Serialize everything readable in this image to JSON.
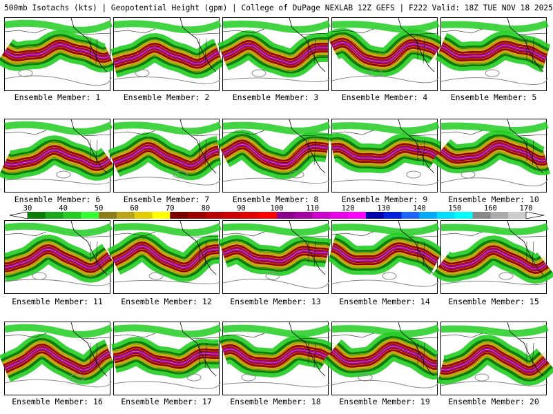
{
  "header": {
    "title": "500mb Isotachs (kts) | Geopotential Height (gpm) | College of DuPage NEXLAB   12Z GEFS | F222 Valid: 18Z TUE NOV 18 2025"
  },
  "members": [
    {
      "label": "Ensemble Member: 1"
    },
    {
      "label": "Ensemble Member: 2"
    },
    {
      "label": "Ensemble Member: 3"
    },
    {
      "label": "Ensemble Member: 4"
    },
    {
      "label": "Ensemble Member: 5"
    },
    {
      "label": "Ensemble Member: 6"
    },
    {
      "label": "Ensemble Member: 7"
    },
    {
      "label": "Ensemble Member: 8"
    },
    {
      "label": "Ensemble Member: 9"
    },
    {
      "label": "Ensemble Member: 10"
    },
    {
      "label": "Ensemble Member: 11"
    },
    {
      "label": "Ensemble Member: 12"
    },
    {
      "label": "Ensemble Member: 13"
    },
    {
      "label": "Ensemble Member: 14"
    },
    {
      "label": "Ensemble Member: 15"
    },
    {
      "label": "Ensemble Member: 16"
    },
    {
      "label": "Ensemble Member: 17"
    },
    {
      "label": "Ensemble Member: 18"
    },
    {
      "label": "Ensemble Member: 19"
    },
    {
      "label": "Ensemble Member: 20"
    }
  ],
  "colorbar": {
    "labels": [
      "30",
      "40",
      "50",
      "60",
      "70",
      "80",
      "90",
      "100",
      "110",
      "120",
      "130",
      "140",
      "150",
      "160",
      "170"
    ],
    "colors": [
      "#0a7d0a",
      "#1aa81a",
      "#22cc22",
      "#33ff33",
      "#8a7d1a",
      "#b8a51a",
      "#e0cc00",
      "#ffff00",
      "#7a0000",
      "#990000",
      "#b80000",
      "#cc0000",
      "#e00000",
      "#ff0000",
      "#8a008a",
      "#a300a3",
      "#cc00cc",
      "#e600e6",
      "#ff00ff",
      "#0000aa",
      "#0022dd",
      "#1a66ff",
      "#00aaff",
      "#00ddff",
      "#00ffff",
      "#888888",
      "#aaaaaa",
      "#cccccc"
    ]
  }
}
